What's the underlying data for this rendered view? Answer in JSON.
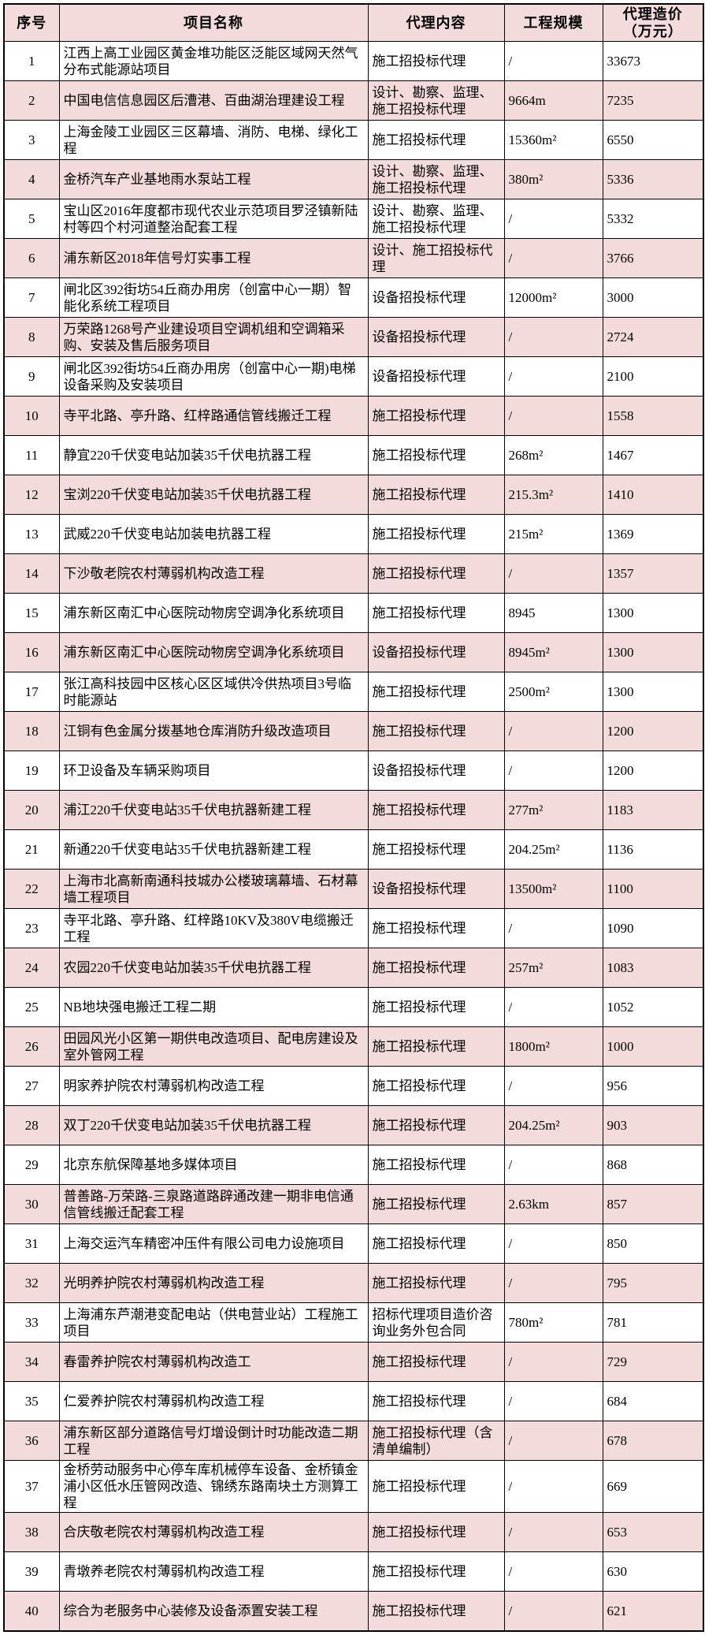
{
  "colors": {
    "row_alt_background": "#f2dbda",
    "border": "#000000",
    "text": "#000000",
    "background": "#ffffff"
  },
  "table": {
    "columns": [
      {
        "key": "index",
        "label": "序号"
      },
      {
        "key": "name",
        "label": "项目名称"
      },
      {
        "key": "content",
        "label": "代理内容"
      },
      {
        "key": "scale",
        "label": "工程规模"
      },
      {
        "key": "cost",
        "label": "代理造价\n（万元）"
      }
    ],
    "rows": [
      {
        "index": "1",
        "name": "江西上高工业园区黄金堆功能区泛能区域网天然气分布式能源站项目",
        "content": "施工招投标代理",
        "scale": "/",
        "cost": "33673"
      },
      {
        "index": "2",
        "name": "中国电信信息园区后漕港、百曲湖治理建设工程",
        "content": "设计、勘察、监理、施工招投标代理",
        "scale": "9664m",
        "cost": "7235"
      },
      {
        "index": "3",
        "name": "上海金陵工业园区三区幕墙、消防、电梯、绿化工程",
        "content": "施工招投标代理",
        "scale": "15360m²",
        "cost": "6550"
      },
      {
        "index": "4",
        "name": "金桥汽车产业基地雨水泵站工程",
        "content": "设计、勘察、监理、施工招投标代理",
        "scale": "380m²",
        "cost": "5336"
      },
      {
        "index": "5",
        "name": "宝山区2016年度都市现代农业示范项目罗泾镇新陆村等四个村河道整治配套工程",
        "content": "设计、勘察、监理、施工招投标代理",
        "scale": "/",
        "cost": "5332"
      },
      {
        "index": "6",
        "name": "浦东新区2018年信号灯实事工程",
        "content": "设计、施工招投标代理",
        "scale": "/",
        "cost": "3766"
      },
      {
        "index": "7",
        "name": "闸北区392街坊54丘商办用房（创富中心一期）智能化系统工程项目",
        "content": "设备招投标代理",
        "scale": "12000m²",
        "cost": "3000"
      },
      {
        "index": "8",
        "name": "万荣路1268号产业建设项目空调机组和空调箱采购、安装及售后服务项目",
        "content": "设备招投标代理",
        "scale": "/",
        "cost": "2724"
      },
      {
        "index": "9",
        "name": "闸北区392街坊54丘商办用房（创富中心一期)电梯设备采购及安装项目",
        "content": "设备招投标代理",
        "scale": "/",
        "cost": "2100"
      },
      {
        "index": "10",
        "name": "寺平北路、亭升路、红梓路通信管线搬迁工程",
        "content": "施工招投标代理",
        "scale": "/",
        "cost": "1558"
      },
      {
        "index": "11",
        "name": "静宜220千伏变电站加装35千伏电抗器工程",
        "content": "施工招投标代理",
        "scale": "268m²",
        "cost": "1467"
      },
      {
        "index": "12",
        "name": "宝浏220千伏变电站加装35千伏电抗器工程",
        "content": "施工招投标代理",
        "scale": "215.3m²",
        "cost": "1410"
      },
      {
        "index": "13",
        "name": "武威220千伏变电站加装电抗器工程",
        "content": "施工招投标代理",
        "scale": "215m²",
        "cost": "1369"
      },
      {
        "index": "14",
        "name": "下沙敬老院农村薄弱机构改造工程",
        "content": "施工招投标代理",
        "scale": "/",
        "cost": "1357"
      },
      {
        "index": "15",
        "name": "浦东新区南汇中心医院动物房空调净化系统项目",
        "content": "施工招投标代理",
        "scale": "8945",
        "cost": "1300"
      },
      {
        "index": "16",
        "name": "浦东新区南汇中心医院动物房空调净化系统项目",
        "content": "设备招投标代理",
        "scale": "8945m²",
        "cost": "1300"
      },
      {
        "index": "17",
        "name": "张江高科技园中区核心区区域供冷供热项目3号临时能源站",
        "content": "施工招投标代理",
        "scale": "2500m²",
        "cost": "1300"
      },
      {
        "index": "18",
        "name": "江铜有色金属分拨基地仓库消防升级改造项目",
        "content": "施工招投标代理",
        "scale": "/",
        "cost": "1200"
      },
      {
        "index": "19",
        "name": "环卫设备及车辆采购项目",
        "content": "设备招投标代理",
        "scale": "/",
        "cost": "1200"
      },
      {
        "index": "20",
        "name": "浦江220千伏变电站35千伏电抗器新建工程",
        "content": "施工招投标代理",
        "scale": "277m²",
        "cost": "1183"
      },
      {
        "index": "21",
        "name": "新通220千伏变电站35千伏电抗器新建工程",
        "content": "施工招投标代理",
        "scale": "204.25m²",
        "cost": "1136"
      },
      {
        "index": "22",
        "name": "上海市北高新南通科技城办公楼玻璃幕墙、石材幕墙工程项目",
        "content": "设备招投标代理",
        "scale": "13500m²",
        "cost": "1100"
      },
      {
        "index": "23",
        "name": "寺平北路、亭升路、红梓路10KV及380V电缆搬迁工程",
        "content": "施工招投标代理",
        "scale": "/",
        "cost": "1090"
      },
      {
        "index": "24",
        "name": "农园220千伏变电站加装35千伏电抗器工程",
        "content": "施工招投标代理",
        "scale": "257m²",
        "cost": "1083"
      },
      {
        "index": "25",
        "name": "NB地块强电搬迁工程二期",
        "content": "施工招投标代理",
        "scale": "/",
        "cost": "1052"
      },
      {
        "index": "26",
        "name": "田园风光小区第一期供电改造项目、配电房建设及室外管网工程",
        "content": "施工招投标代理",
        "scale": "1800m²",
        "cost": "1000"
      },
      {
        "index": "27",
        "name": "明家养护院农村薄弱机构改造工程",
        "content": "施工招投标代理",
        "scale": "/",
        "cost": "956"
      },
      {
        "index": "28",
        "name": "双丁220千伏变电站加装35千伏电抗器工程",
        "content": "施工招投标代理",
        "scale": "204.25m²",
        "cost": "903"
      },
      {
        "index": "29",
        "name": "北京东航保障基地多媒体项目",
        "content": "施工招投标代理",
        "scale": "/",
        "cost": "868"
      },
      {
        "index": "30",
        "name": "普善路-万荣路-三泉路道路辟通改建一期非电信通信管线搬迁配套工程",
        "content": "施工招投标代理",
        "scale": "2.63km",
        "cost": "857"
      },
      {
        "index": "31",
        "name": "上海交运汽车精密冲压件有限公司电力设施项目",
        "content": "施工招投标代理",
        "scale": "/",
        "cost": "850"
      },
      {
        "index": "32",
        "name": "光明养护院农村薄弱机构改造工程",
        "content": "施工招投标代理",
        "scale": "/",
        "cost": "795"
      },
      {
        "index": "33",
        "name": "上海浦东芦潮港变配电站（供电营业站）工程施工项目",
        "content": "招标代理项目造价咨询业务外包合同",
        "scale": "780m²",
        "cost": "781"
      },
      {
        "index": "34",
        "name": "春雷养护院农村薄弱机构改造工",
        "content": "施工招投标代理",
        "scale": "/",
        "cost": "729"
      },
      {
        "index": "35",
        "name": "仁爱养护院农村薄弱机构改造工程",
        "content": "施工招投标代理",
        "scale": "/",
        "cost": "684"
      },
      {
        "index": "36",
        "name": "浦东新区部分道路信号灯增设倒计时功能改造二期工程",
        "content": "施工招投标代理（含清单编制）",
        "scale": "/",
        "cost": "678"
      },
      {
        "index": "37",
        "name": "金桥劳动服务中心停车库机械停车设备、金桥镇金浦小区低水压管网改造、锦绣东路南块土方测算工程",
        "content": "施工招投标代理",
        "scale": "/",
        "cost": "669"
      },
      {
        "index": "38",
        "name": "合庆敬老院农村薄弱机构改造工程",
        "content": "施工招投标代理",
        "scale": "/",
        "cost": "653"
      },
      {
        "index": "39",
        "name": "青墩养老院农村薄弱机构改造工程",
        "content": "施工招投标代理",
        "scale": "/",
        "cost": "630"
      },
      {
        "index": "40",
        "name": "综合为老服务中心装修及设备添置安装工程",
        "content": "施工招投标代理",
        "scale": "/",
        "cost": "621"
      }
    ]
  }
}
